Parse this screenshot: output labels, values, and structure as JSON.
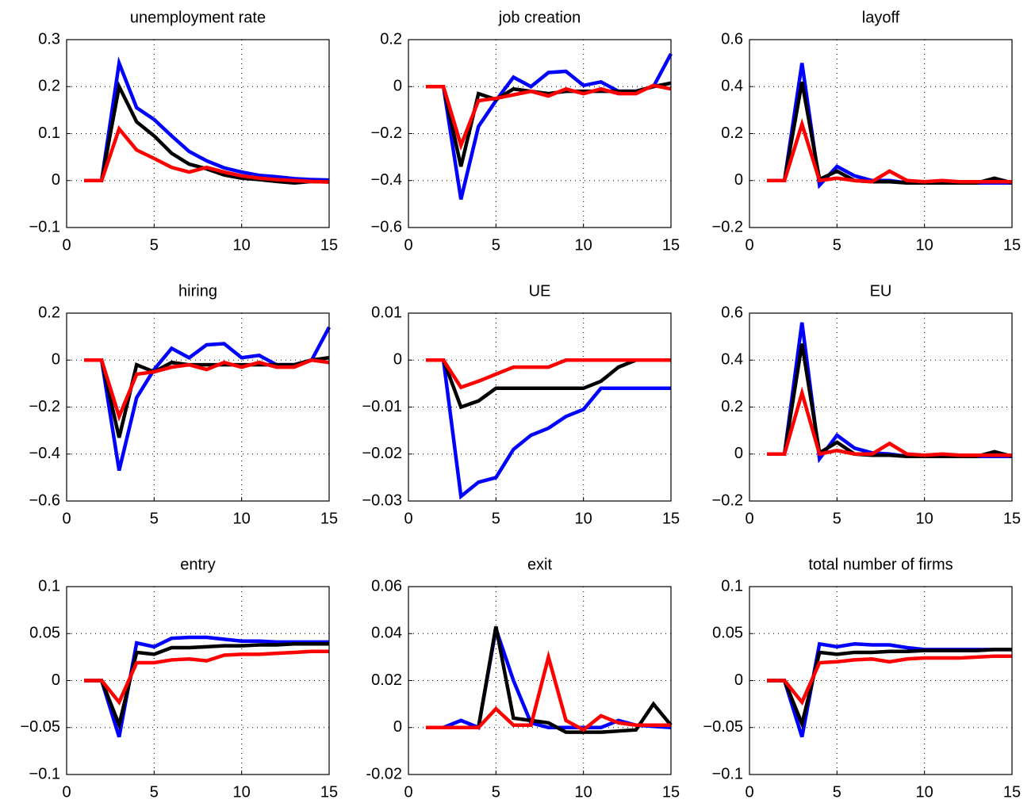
{
  "chart_data": [
    {
      "type": "line",
      "title": "unemployment rate",
      "x": [
        1,
        2,
        3,
        4,
        5,
        6,
        7,
        8,
        9,
        10,
        11,
        12,
        13,
        14,
        15
      ],
      "xlim": [
        0,
        15
      ],
      "xticks": [
        0,
        5,
        10,
        15
      ],
      "ylim": [
        -0.1,
        0.3
      ],
      "yticks": [
        {
          "value": -0.1,
          "label": "−0.1"
        },
        0,
        0.1,
        0.2,
        0.3
      ],
      "grid": true,
      "series": [
        {
          "color": "#0000ff",
          "values": [
            0,
            0,
            0.25,
            0.155,
            0.13,
            0.095,
            0.062,
            0.042,
            0.027,
            0.018,
            0.011,
            0.008,
            0.004,
            0.002,
            0.001
          ]
        },
        {
          "color": "#000000",
          "values": [
            0,
            0,
            0.2,
            0.125,
            0.095,
            0.058,
            0.035,
            0.025,
            0.012,
            0.005,
            0.002,
            -0.002,
            -0.005,
            -0.002,
            -0.003
          ]
        },
        {
          "color": "#ff0000",
          "values": [
            0,
            0,
            0.11,
            0.065,
            0.047,
            0.028,
            0.018,
            0.028,
            0.018,
            0.01,
            0.005,
            0.002,
            0.0,
            -0.002,
            -0.003
          ]
        }
      ]
    },
    {
      "type": "line",
      "title": "job creation",
      "x": [
        1,
        2,
        3,
        4,
        5,
        6,
        7,
        8,
        9,
        10,
        11,
        12,
        13,
        14,
        15
      ],
      "xlim": [
        0,
        15
      ],
      "xticks": [
        0,
        5,
        10,
        15
      ],
      "ylim": [
        -0.6,
        0.2
      ],
      "yticks": [
        {
          "value": -0.6,
          "label": "−0.6"
        },
        {
          "value": -0.4,
          "label": "−0.4"
        },
        {
          "value": -0.2,
          "label": "−0.2"
        },
        0,
        0.2
      ],
      "grid": true,
      "series": [
        {
          "color": "#0000ff",
          "values": [
            0,
            0,
            -0.48,
            -0.17,
            -0.06,
            0.04,
            0.0,
            0.06,
            0.065,
            0.005,
            0.02,
            -0.02,
            -0.02,
            0.0,
            0.14
          ]
        },
        {
          "color": "#000000",
          "values": [
            0,
            0,
            -0.34,
            -0.03,
            -0.055,
            -0.01,
            -0.02,
            -0.03,
            -0.02,
            -0.02,
            -0.02,
            -0.02,
            -0.02,
            0.0,
            0.015
          ]
        },
        {
          "color": "#ff0000",
          "values": [
            0,
            0,
            -0.25,
            -0.06,
            -0.05,
            -0.035,
            -0.02,
            -0.04,
            -0.01,
            -0.03,
            -0.01,
            -0.03,
            -0.03,
            0.005,
            -0.01
          ]
        }
      ]
    },
    {
      "type": "line",
      "title": "layoff",
      "x": [
        1,
        2,
        3,
        4,
        5,
        6,
        7,
        8,
        9,
        10,
        11,
        12,
        13,
        14,
        15
      ],
      "xlim": [
        0,
        15
      ],
      "xticks": [
        0,
        5,
        10,
        15
      ],
      "ylim": [
        -0.2,
        0.6
      ],
      "yticks": [
        {
          "value": -0.2,
          "label": "−0.2"
        },
        0,
        0.2,
        0.4,
        0.6
      ],
      "grid": true,
      "series": [
        {
          "color": "#0000ff",
          "values": [
            0,
            0,
            0.5,
            -0.02,
            0.06,
            0.02,
            0.0,
            0.0,
            -0.01,
            -0.01,
            -0.01,
            -0.01,
            -0.01,
            -0.01,
            -0.01
          ]
        },
        {
          "color": "#000000",
          "values": [
            0,
            0,
            0.42,
            0.005,
            0.04,
            0.0,
            -0.005,
            -0.005,
            -0.01,
            -0.01,
            -0.01,
            -0.01,
            -0.01,
            0.01,
            -0.01
          ]
        },
        {
          "color": "#ff0000",
          "values": [
            0,
            0,
            0.24,
            0.0,
            0.01,
            0.0,
            -0.005,
            0.04,
            0.0,
            -0.005,
            0.0,
            -0.005,
            -0.005,
            -0.005,
            -0.005
          ]
        }
      ]
    },
    {
      "type": "line",
      "title": "hiring",
      "x": [
        1,
        2,
        3,
        4,
        5,
        6,
        7,
        8,
        9,
        10,
        11,
        12,
        13,
        14,
        15
      ],
      "xlim": [
        0,
        15
      ],
      "xticks": [
        0,
        5,
        10,
        15
      ],
      "ylim": [
        -0.6,
        0.2
      ],
      "yticks": [
        {
          "value": -0.6,
          "label": "−0.6"
        },
        {
          "value": -0.4,
          "label": "−0.4"
        },
        {
          "value": -0.2,
          "label": "−0.2"
        },
        0,
        0.2
      ],
      "grid": true,
      "series": [
        {
          "color": "#0000ff",
          "values": [
            0,
            0,
            -0.47,
            -0.16,
            -0.04,
            0.05,
            0.01,
            0.065,
            0.07,
            0.01,
            0.02,
            -0.02,
            -0.02,
            0.0,
            0.14
          ]
        },
        {
          "color": "#000000",
          "values": [
            0,
            0,
            -0.33,
            -0.02,
            -0.05,
            -0.01,
            -0.02,
            -0.02,
            -0.02,
            -0.02,
            -0.02,
            -0.02,
            -0.02,
            0.0,
            0.01
          ]
        },
        {
          "color": "#ff0000",
          "values": [
            0,
            0,
            -0.24,
            -0.06,
            -0.05,
            -0.03,
            -0.02,
            -0.04,
            -0.01,
            -0.03,
            -0.01,
            -0.03,
            -0.03,
            0.0,
            -0.01
          ]
        }
      ]
    },
    {
      "type": "line",
      "title": "UE",
      "x": [
        1,
        2,
        3,
        4,
        5,
        6,
        7,
        8,
        9,
        10,
        11,
        12,
        13,
        14,
        15
      ],
      "xlim": [
        0,
        15
      ],
      "xticks": [
        0,
        5,
        10,
        15
      ],
      "ylim": [
        -0.03,
        0.01
      ],
      "yticks": [
        {
          "value": -0.03,
          "label": "−0.03"
        },
        {
          "value": -0.02,
          "label": "−0.02"
        },
        {
          "value": -0.01,
          "label": "−0.01"
        },
        0,
        0.01
      ],
      "grid": true,
      "series": [
        {
          "color": "#0000ff",
          "values": [
            0,
            0,
            -0.029,
            -0.026,
            -0.025,
            -0.019,
            -0.016,
            -0.0145,
            -0.012,
            -0.0105,
            -0.006,
            -0.006,
            -0.006,
            -0.006,
            -0.006
          ]
        },
        {
          "color": "#000000",
          "values": [
            0,
            0,
            -0.01,
            -0.0087,
            -0.006,
            -0.006,
            -0.006,
            -0.006,
            -0.006,
            -0.006,
            -0.0045,
            -0.0015,
            0,
            0,
            0
          ]
        },
        {
          "color": "#ff0000",
          "values": [
            0,
            0,
            -0.0058,
            -0.0045,
            -0.003,
            -0.0015,
            -0.0015,
            -0.0015,
            0,
            0,
            0,
            0,
            0,
            0,
            0
          ]
        }
      ]
    },
    {
      "type": "line",
      "title": "EU",
      "x": [
        1,
        2,
        3,
        4,
        5,
        6,
        7,
        8,
        9,
        10,
        11,
        12,
        13,
        14,
        15
      ],
      "xlim": [
        0,
        15
      ],
      "xticks": [
        0,
        5,
        10,
        15
      ],
      "ylim": [
        -0.2,
        0.6
      ],
      "yticks": [
        {
          "value": -0.2,
          "label": "−0.2"
        },
        0,
        0.2,
        0.4,
        0.6
      ],
      "grid": true,
      "series": [
        {
          "color": "#0000ff",
          "values": [
            0,
            0,
            0.56,
            -0.02,
            0.08,
            0.025,
            0.005,
            0.0,
            -0.01,
            -0.01,
            -0.01,
            -0.01,
            -0.01,
            -0.01,
            -0.01
          ]
        },
        {
          "color": "#000000",
          "values": [
            0,
            0,
            0.47,
            0.005,
            0.05,
            0.0,
            -0.005,
            -0.005,
            -0.01,
            -0.01,
            -0.01,
            -0.01,
            -0.01,
            0.01,
            -0.01
          ]
        },
        {
          "color": "#ff0000",
          "values": [
            0,
            0,
            0.26,
            0.0,
            0.015,
            0.0,
            0.0,
            0.045,
            0.0,
            -0.005,
            0.0,
            -0.005,
            -0.005,
            -0.005,
            -0.005
          ]
        }
      ]
    },
    {
      "type": "line",
      "title": "entry",
      "x": [
        1,
        2,
        3,
        4,
        5,
        6,
        7,
        8,
        9,
        10,
        11,
        12,
        13,
        14,
        15
      ],
      "xlim": [
        0,
        15
      ],
      "xticks": [
        0,
        5,
        10,
        15
      ],
      "ylim": [
        -0.1,
        0.1
      ],
      "yticks": [
        {
          "value": -0.1,
          "label": "−0.1"
        },
        {
          "value": -0.05,
          "label": "−0.05"
        },
        0,
        0.05,
        0.1
      ],
      "grid": true,
      "series": [
        {
          "color": "#0000ff",
          "values": [
            0,
            0,
            -0.06,
            0.04,
            0.036,
            0.045,
            0.046,
            0.046,
            0.044,
            0.042,
            0.042,
            0.041,
            0.041,
            0.041,
            0.041
          ]
        },
        {
          "color": "#000000",
          "values": [
            0,
            0,
            -0.047,
            0.03,
            0.028,
            0.035,
            0.035,
            0.036,
            0.037,
            0.037,
            0.038,
            0.038,
            0.039,
            0.039,
            0.039
          ]
        },
        {
          "color": "#ff0000",
          "values": [
            0,
            0,
            -0.023,
            0.019,
            0.019,
            0.022,
            0.023,
            0.021,
            0.027,
            0.028,
            0.028,
            0.029,
            0.03,
            0.031,
            0.031
          ]
        }
      ]
    },
    {
      "type": "line",
      "title": "exit",
      "x": [
        1,
        2,
        3,
        4,
        5,
        6,
        7,
        8,
        9,
        10,
        11,
        12,
        13,
        14,
        15
      ],
      "xlim": [
        0,
        15
      ],
      "xticks": [
        0,
        5,
        10,
        15
      ],
      "ylim": [
        -0.02,
        0.06
      ],
      "yticks": [
        -0.02,
        0,
        0.02,
        0.04,
        0.06
      ],
      "grid": true,
      "series": [
        {
          "color": "#0000ff",
          "values": [
            0,
            0,
            0.003,
            0,
            0.042,
            0.02,
            0.002,
            0,
            0,
            0,
            0,
            0.003,
            0.001,
            0.0005,
            0
          ]
        },
        {
          "color": "#000000",
          "values": [
            0,
            0,
            0,
            0,
            0.043,
            0.004,
            0.003,
            0.002,
            -0.002,
            -0.002,
            -0.002,
            -0.0015,
            -0.001,
            0.01,
            0.001
          ]
        },
        {
          "color": "#ff0000",
          "values": [
            0,
            0,
            0,
            0,
            0.008,
            0.001,
            0.001,
            0.03,
            0.003,
            -0.001,
            0.005,
            0.002,
            0.001,
            0.001,
            0.001
          ]
        }
      ]
    },
    {
      "type": "line",
      "title": "total number of firms",
      "x": [
        1,
        2,
        3,
        4,
        5,
        6,
        7,
        8,
        9,
        10,
        11,
        12,
        13,
        14,
        15
      ],
      "xlim": [
        0,
        15
      ],
      "xticks": [
        0,
        5,
        10,
        15
      ],
      "ylim": [
        -0.1,
        0.1
      ],
      "yticks": [
        {
          "value": -0.1,
          "label": "−0.1"
        },
        {
          "value": -0.05,
          "label": "−0.05"
        },
        0,
        0.05,
        0.1
      ],
      "grid": true,
      "series": [
        {
          "color": "#0000ff",
          "values": [
            0,
            0,
            -0.06,
            0.039,
            0.036,
            0.039,
            0.038,
            0.038,
            0.035,
            0.033,
            0.033,
            0.033,
            0.033,
            0.033,
            0.033
          ]
        },
        {
          "color": "#000000",
          "values": [
            0,
            0,
            -0.046,
            0.03,
            0.028,
            0.03,
            0.03,
            0.031,
            0.031,
            0.032,
            0.032,
            0.032,
            0.032,
            0.033,
            0.033
          ]
        },
        {
          "color": "#ff0000",
          "values": [
            0,
            0,
            -0.023,
            0.019,
            0.02,
            0.022,
            0.023,
            0.02,
            0.023,
            0.024,
            0.024,
            0.024,
            0.025,
            0.026,
            0.026
          ]
        }
      ]
    }
  ]
}
